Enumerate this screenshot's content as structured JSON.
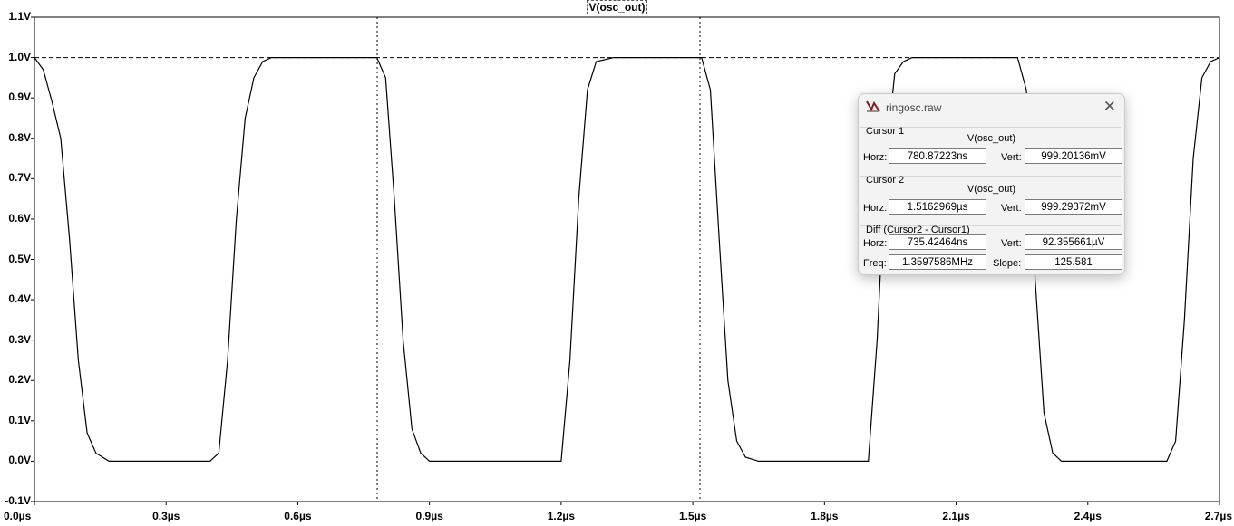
{
  "plot": {
    "trace_title": "V(osc_out)",
    "y_ticks": [
      "1.1V",
      "1.0V",
      "0.9V",
      "0.8V",
      "0.7V",
      "0.6V",
      "0.5V",
      "0.4V",
      "0.3V",
      "0.2V",
      "0.1V",
      "0.0V",
      "-0.1V"
    ],
    "x_ticks": [
      "0.0µs",
      "0.3µs",
      "0.6µs",
      "0.9µs",
      "1.2µs",
      "1.5µs",
      "1.8µs",
      "2.1µs",
      "2.4µs",
      "2.7µs"
    ]
  },
  "chart_data": {
    "type": "line",
    "title": "V(osc_out)",
    "xlabel": "",
    "ylabel": "",
    "xlim": [
      0.0,
      2.7
    ],
    "ylim": [
      -0.1,
      1.1
    ],
    "grid": false,
    "series": [
      {
        "name": "V(osc_out)",
        "x": [
          0.0,
          0.02,
          0.04,
          0.06,
          0.08,
          0.1,
          0.12,
          0.14,
          0.17,
          0.2,
          0.25,
          0.3,
          0.35,
          0.4,
          0.42,
          0.44,
          0.46,
          0.48,
          0.5,
          0.52,
          0.54,
          0.56,
          0.6,
          0.7,
          0.76,
          0.78,
          0.8,
          0.82,
          0.84,
          0.86,
          0.88,
          0.9,
          0.95,
          1.0,
          1.05,
          1.1,
          1.15,
          1.2,
          1.22,
          1.24,
          1.26,
          1.28,
          1.32,
          1.4,
          1.48,
          1.52,
          1.54,
          1.56,
          1.58,
          1.6,
          1.62,
          1.65,
          1.7,
          1.8,
          1.9,
          1.92,
          1.94,
          1.96,
          1.98,
          2.0,
          2.02,
          2.06,
          2.15,
          2.24,
          2.26,
          2.28,
          2.3,
          2.32,
          2.34,
          2.36,
          2.4,
          2.5,
          2.58,
          2.6,
          2.62,
          2.64,
          2.66,
          2.68,
          2.7
        ],
        "y": [
          1.0,
          0.97,
          0.89,
          0.8,
          0.55,
          0.25,
          0.07,
          0.02,
          0.0,
          0.0,
          0.0,
          0.0,
          0.0,
          0.0,
          0.02,
          0.25,
          0.6,
          0.85,
          0.95,
          0.99,
          1.0,
          1.0,
          1.0,
          1.0,
          1.0,
          1.0,
          0.95,
          0.65,
          0.3,
          0.08,
          0.02,
          0.0,
          0.0,
          0.0,
          0.0,
          0.0,
          0.0,
          0.0,
          0.25,
          0.65,
          0.92,
          0.99,
          1.0,
          1.0,
          1.0,
          1.0,
          0.92,
          0.55,
          0.2,
          0.05,
          0.01,
          0.0,
          0.0,
          0.0,
          0.0,
          0.3,
          0.75,
          0.96,
          0.99,
          1.0,
          1.0,
          1.0,
          1.0,
          1.0,
          0.92,
          0.45,
          0.12,
          0.02,
          0.0,
          0.0,
          0.0,
          0.0,
          0.0,
          0.05,
          0.35,
          0.75,
          0.95,
          0.99,
          1.0
        ]
      }
    ],
    "cursors_x": [
      0.78087223,
      1.5162969
    ],
    "reference_y": 1.0
  },
  "dialog": {
    "title": "ringosc.raw",
    "cursor1": {
      "label": "Cursor 1",
      "trace": "V(osc_out)",
      "horz_label": "Horz:",
      "horz": "780.87223ns",
      "vert_label": "Vert:",
      "vert": "999.20136mV"
    },
    "cursor2": {
      "label": "Cursor 2",
      "trace": "V(osc_out)",
      "horz_label": "Horz:",
      "horz": "1.5162969µs",
      "vert_label": "Vert:",
      "vert": "999.29372mV"
    },
    "diff": {
      "label": "Diff (Cursor2 - Cursor1)",
      "horz_label": "Horz:",
      "horz": "735.42464ns",
      "vert_label": "Vert:",
      "vert": "92.355661µV",
      "freq_label": "Freq:",
      "freq": "1.3597586MHz",
      "slope_label": "Slope:",
      "slope": "125.581"
    }
  }
}
